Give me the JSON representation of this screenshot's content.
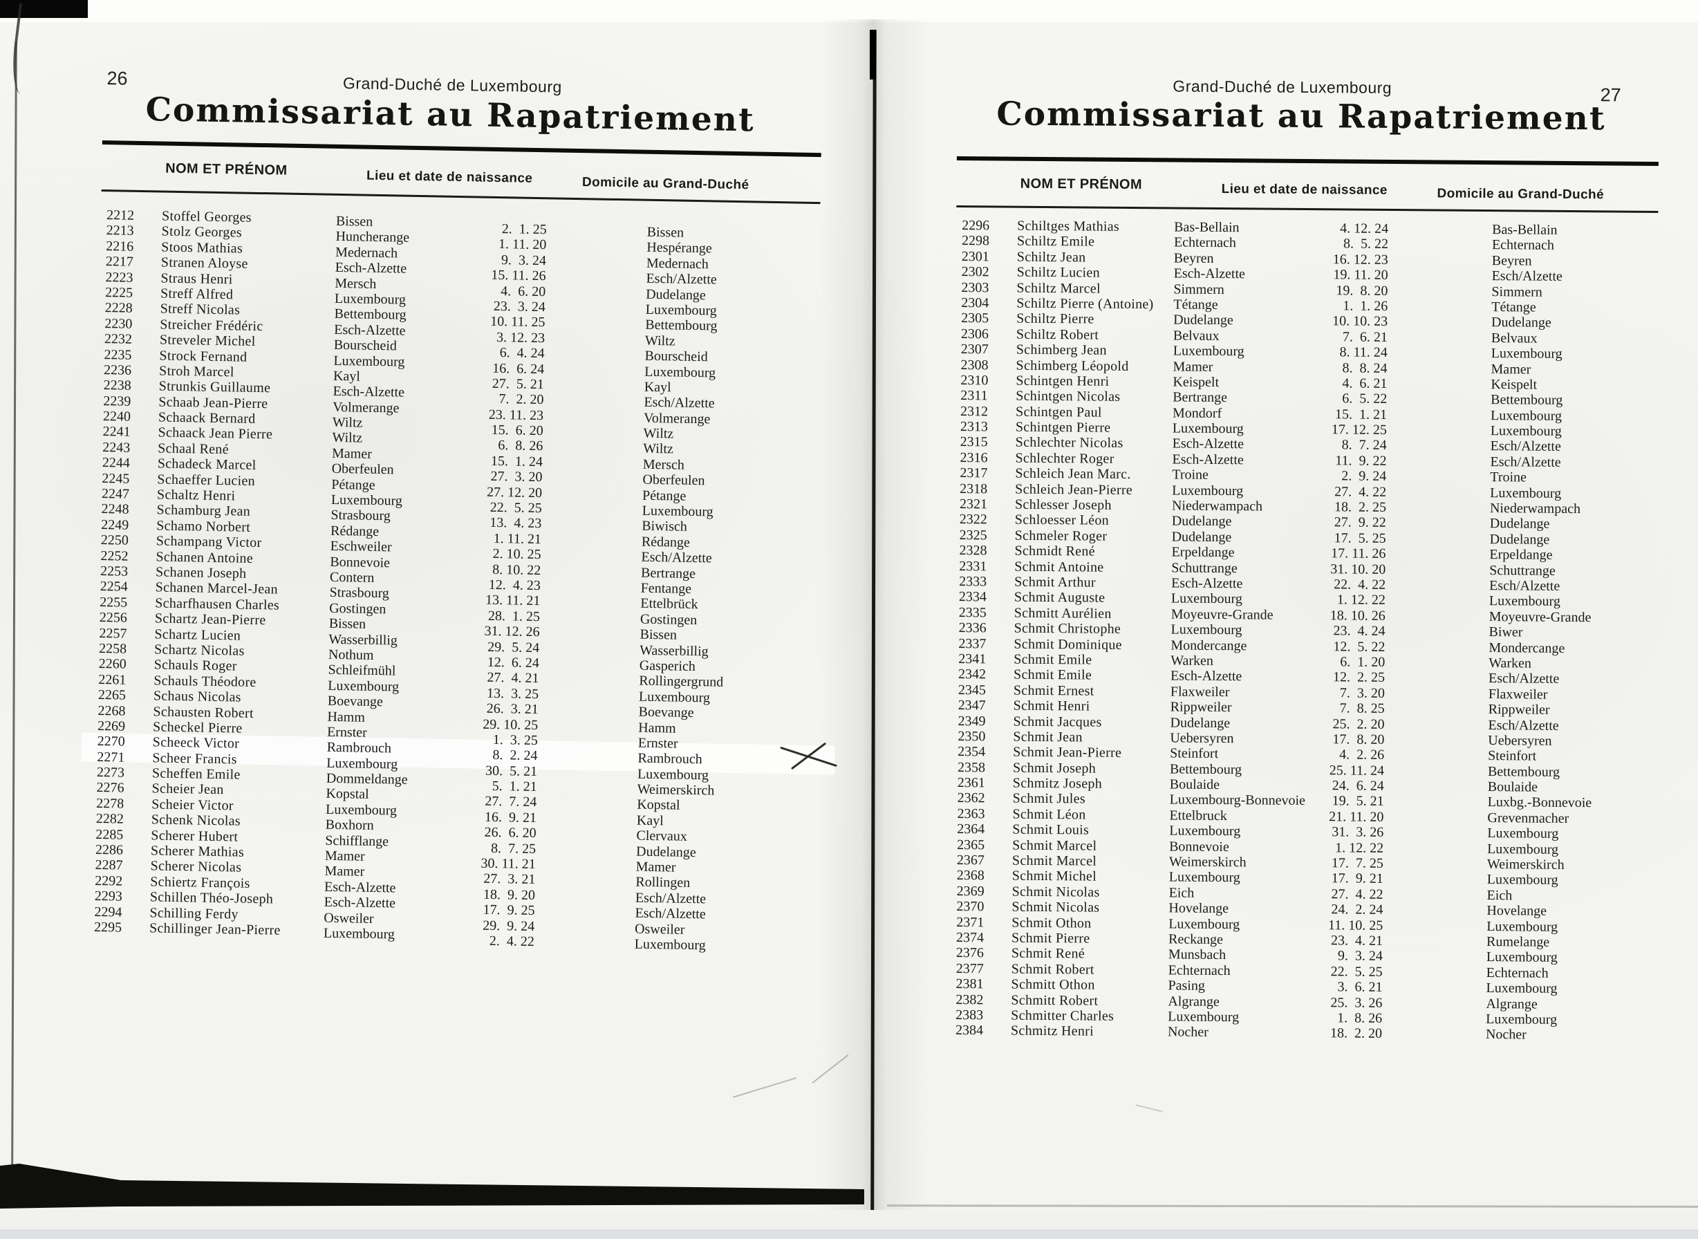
{
  "colors": {
    "paper": "#f5f5f2",
    "ink": "#1d1c1a",
    "title_ink": "#161511"
  },
  "columns": {
    "name": "NOM ET PRÉNOM",
    "birth": "Lieu et date de naissance",
    "domicile": "Domicile au Grand-Duché"
  },
  "page_left": {
    "page_number": "26",
    "country": "Grand-Duché de Luxembourg",
    "title": "Commissariat au Rapatriement",
    "rows": [
      {
        "num": "2212",
        "name": "Stoffel Georges",
        "birthplace": "Bissen",
        "birthdate": " 2.  1. 25",
        "domicile": "Bissen"
      },
      {
        "num": "2213",
        "name": "Stolz Georges",
        "birthplace": "Huncherange",
        "birthdate": " 1. 11. 20",
        "domicile": "Hespérange"
      },
      {
        "num": "2216",
        "name": "Stoos Mathias",
        "birthplace": "Medernach",
        "birthdate": " 9.  3. 24",
        "domicile": "Medernach"
      },
      {
        "num": "2217",
        "name": "Stranen Aloyse",
        "birthplace": "Esch-Alzette",
        "birthdate": "15. 11. 26",
        "domicile": "Esch/Alzette"
      },
      {
        "num": "2223",
        "name": "Straus Henri",
        "birthplace": "Mersch",
        "birthdate": " 4.  6. 20",
        "domicile": "Dudelange"
      },
      {
        "num": "2225",
        "name": "Streff Alfred",
        "birthplace": "Luxembourg",
        "birthdate": "23.  3. 24",
        "domicile": "Luxembourg"
      },
      {
        "num": "2228",
        "name": "Streff Nicolas",
        "birthplace": "Bettembourg",
        "birthdate": "10. 11. 25",
        "domicile": "Bettembourg"
      },
      {
        "num": "2230",
        "name": "Streicher Frédéric",
        "birthplace": "Esch-Alzette",
        "birthdate": " 3. 12. 23",
        "domicile": "Wiltz"
      },
      {
        "num": "2232",
        "name": "Streveler Michel",
        "birthplace": "Bourscheid",
        "birthdate": " 6.  4. 24",
        "domicile": "Bourscheid"
      },
      {
        "num": "2235",
        "name": "Strock Fernand",
        "birthplace": "Luxembourg",
        "birthdate": "16.  6. 24",
        "domicile": "Luxembourg"
      },
      {
        "num": "2236",
        "name": "Stroh Marcel",
        "birthplace": "Kayl",
        "birthdate": "27.  5. 21",
        "domicile": "Kayl"
      },
      {
        "num": "2238",
        "name": "Strunkis Guillaume",
        "birthplace": "Esch-Alzette",
        "birthdate": " 7.  2. 20",
        "domicile": "Esch/Alzette"
      },
      {
        "num": "2239",
        "name": "Schaab Jean-Pierre",
        "birthplace": "Volmerange",
        "birthdate": "23. 11. 23",
        "domicile": "Volmerange"
      },
      {
        "num": "2240",
        "name": "Schaack Bernard",
        "birthplace": "Wiltz",
        "birthdate": "15.  6. 20",
        "domicile": "Wiltz"
      },
      {
        "num": "2241",
        "name": "Schaack Jean Pierre",
        "birthplace": "Wiltz",
        "birthdate": " 6.  8. 26",
        "domicile": "Wiltz"
      },
      {
        "num": "2243",
        "name": "Schaal René",
        "birthplace": "Mamer",
        "birthdate": "15.  1. 24",
        "domicile": "Mersch"
      },
      {
        "num": "2244",
        "name": "Schadeck Marcel",
        "birthplace": "Oberfeulen",
        "birthdate": "27.  3. 20",
        "domicile": "Oberfeulen"
      },
      {
        "num": "2245",
        "name": "Schaeffer Lucien",
        "birthplace": "Pétange",
        "birthdate": "27. 12. 20",
        "domicile": "Pétange"
      },
      {
        "num": "2247",
        "name": "Schaltz Henri",
        "birthplace": "Luxembourg",
        "birthdate": "22.  5. 25",
        "domicile": "Luxembourg"
      },
      {
        "num": "2248",
        "name": "Schamburg Jean",
        "birthplace": "Strasbourg",
        "birthdate": "13.  4. 23",
        "domicile": "Biwisch"
      },
      {
        "num": "2249",
        "name": "Schamo Norbert",
        "birthplace": "Rédange",
        "birthdate": " 1. 11. 21",
        "domicile": "Rédange"
      },
      {
        "num": "2250",
        "name": "Schampang Victor",
        "birthplace": "Eschweiler",
        "birthdate": " 2. 10. 25",
        "domicile": "Esch/Alzette"
      },
      {
        "num": "2252",
        "name": "Schanen Antoine",
        "birthplace": "Bonnevoie",
        "birthdate": " 8. 10. 22",
        "domicile": "Bertrange"
      },
      {
        "num": "2253",
        "name": "Schanen Joseph",
        "birthplace": "Contern",
        "birthdate": "12.  4. 23",
        "domicile": "Fentange"
      },
      {
        "num": "2254",
        "name": "Schanen Marcel-Jean",
        "birthplace": "Strasbourg",
        "birthdate": "13. 11. 21",
        "domicile": "Ettelbrück"
      },
      {
        "num": "2255",
        "name": "Scharfhausen Charles",
        "birthplace": "Gostingen",
        "birthdate": "28.  1. 25",
        "domicile": "Gostingen"
      },
      {
        "num": "2256",
        "name": "Schartz Jean-Pierre",
        "birthplace": "Bissen",
        "birthdate": "31. 12. 26",
        "domicile": "Bissen"
      },
      {
        "num": "2257",
        "name": "Schartz Lucien",
        "birthplace": "Wasserbillig",
        "birthdate": "29.  5. 24",
        "domicile": "Wasserbillig"
      },
      {
        "num": "2258",
        "name": "Schartz Nicolas",
        "birthplace": "Nothum",
        "birthdate": "12.  6. 24",
        "domicile": "Gasperich"
      },
      {
        "num": "2260",
        "name": "Schauls Roger",
        "birthplace": "Schleifmühl",
        "birthdate": "27.  4. 21",
        "domicile": "Rollingergrund"
      },
      {
        "num": "2261",
        "name": "Schauls Théodore",
        "birthplace": "Luxembourg",
        "birthdate": "13.  3. 25",
        "domicile": "Luxembourg"
      },
      {
        "num": "2265",
        "name": "Schaus Nicolas",
        "birthplace": "Boevange",
        "birthdate": "26.  3. 21",
        "domicile": "Boevange"
      },
      {
        "num": "2268",
        "name": "Schausten Robert",
        "birthplace": "Hamm",
        "birthdate": "29. 10. 25",
        "domicile": "Hamm"
      },
      {
        "num": "2269",
        "name": "Scheckel Pierre",
        "birthplace": "Ernster",
        "birthdate": " 1.  3. 25",
        "domicile": "Ernster"
      },
      {
        "num": "2270",
        "name": "Scheeck Victor",
        "birthplace": "Rambrouch",
        "birthdate": " 8.  2. 24",
        "domicile": "Rambrouch",
        "highlight": true
      },
      {
        "num": "2271",
        "name": "Scheer Francis",
        "birthplace": "Luxembourg",
        "birthdate": "30.  5. 21",
        "domicile": "Luxembourg"
      },
      {
        "num": "2273",
        "name": "Scheffen Emile",
        "birthplace": "Dommeldange",
        "birthdate": " 5.  1. 21",
        "domicile": "Weimerskirch"
      },
      {
        "num": "2276",
        "name": "Scheier Jean",
        "birthplace": "Kopstal",
        "birthdate": "27.  7. 24",
        "domicile": "Kopstal"
      },
      {
        "num": "2278",
        "name": "Scheier Victor",
        "birthplace": "Luxembourg",
        "birthdate": "16.  9. 21",
        "domicile": "Kayl"
      },
      {
        "num": "2282",
        "name": "Schenk Nicolas",
        "birthplace": "Boxhorn",
        "birthdate": "26.  6. 20",
        "domicile": "Clervaux"
      },
      {
        "num": "2285",
        "name": "Scherer Hubert",
        "birthplace": "Schifflange",
        "birthdate": " 8.  7. 25",
        "domicile": "Dudelange"
      },
      {
        "num": "2286",
        "name": "Scherer Mathias",
        "birthplace": "Mamer",
        "birthdate": "30. 11. 21",
        "domicile": "Mamer"
      },
      {
        "num": "2287",
        "name": "Scherer Nicolas",
        "birthplace": "Mamer",
        "birthdate": "27.  3. 21",
        "domicile": "Rollingen"
      },
      {
        "num": "2292",
        "name": "Schiertz François",
        "birthplace": "Esch-Alzette",
        "birthdate": "18.  9. 20",
        "domicile": "Esch/Alzette"
      },
      {
        "num": "2293",
        "name": "Schillen Théo-Joseph",
        "birthplace": "Esch-Alzette",
        "birthdate": "17.  9. 25",
        "domicile": "Esch/Alzette"
      },
      {
        "num": "2294",
        "name": "Schilling Ferdy",
        "birthplace": "Osweiler",
        "birthdate": "29.  9. 24",
        "domicile": "Osweiler"
      },
      {
        "num": "2295",
        "name": "Schillinger Jean-Pierre",
        "birthplace": "Luxembourg",
        "birthdate": " 2.  4. 22",
        "domicile": "Luxembourg"
      }
    ]
  },
  "page_right": {
    "page_number": "27",
    "country": "Grand-Duché de Luxembourg",
    "title": "Commissariat au Rapatriement",
    "rows": [
      {
        "num": "2296",
        "name": "Schiltges Mathias",
        "birthplace": "Bas-Bellain",
        "birthdate": " 4. 12. 24",
        "domicile": "Bas-Bellain"
      },
      {
        "num": "2298",
        "name": "Schiltz Emile",
        "birthplace": "Echternach",
        "birthdate": " 8.  5. 22",
        "domicile": "Echternach"
      },
      {
        "num": "2301",
        "name": "Schiltz Jean",
        "birthplace": "Beyren",
        "birthdate": "16. 12. 23",
        "domicile": "Beyren"
      },
      {
        "num": "2302",
        "name": "Schiltz Lucien",
        "birthplace": "Esch-Alzette",
        "birthdate": "19. 11. 20",
        "domicile": "Esch/Alzette"
      },
      {
        "num": "2303",
        "name": "Schiltz Marcel",
        "birthplace": "Simmern",
        "birthdate": "19.  8. 20",
        "domicile": "Simmern"
      },
      {
        "num": "2304",
        "name": "Schiltz Pierre (Antoine)",
        "birthplace": "Tétange",
        "birthdate": " 1.  1. 26",
        "domicile": "Tétange"
      },
      {
        "num": "2305",
        "name": "Schiltz Pierre",
        "birthplace": "Dudelange",
        "birthdate": "10. 10. 23",
        "domicile": "Dudelange"
      },
      {
        "num": "2306",
        "name": "Schiltz Robert",
        "birthplace": "Belvaux",
        "birthdate": " 7.  6. 21",
        "domicile": "Belvaux"
      },
      {
        "num": "2307",
        "name": "Schimberg Jean",
        "birthplace": "Luxembourg",
        "birthdate": " 8. 11. 24",
        "domicile": "Luxembourg"
      },
      {
        "num": "2308",
        "name": "Schimberg Léopold",
        "birthplace": "Mamer",
        "birthdate": " 8.  8. 24",
        "domicile": "Mamer"
      },
      {
        "num": "2310",
        "name": "Schintgen Henri",
        "birthplace": "Keispelt",
        "birthdate": " 4.  6. 21",
        "domicile": "Keispelt"
      },
      {
        "num": "2311",
        "name": "Schintgen Nicolas",
        "birthplace": "Bertrange",
        "birthdate": " 6.  5. 22",
        "domicile": "Bettembourg"
      },
      {
        "num": "2312",
        "name": "Schintgen Paul",
        "birthplace": "Mondorf",
        "birthdate": "15.  1. 21",
        "domicile": "Luxembourg"
      },
      {
        "num": "2313",
        "name": "Schintgen Pierre",
        "birthplace": "Luxembourg",
        "birthdate": "17. 12. 25",
        "domicile": "Luxembourg"
      },
      {
        "num": "2315",
        "name": "Schlechter Nicolas",
        "birthplace": "Esch-Alzette",
        "birthdate": " 8.  7. 24",
        "domicile": "Esch/Alzette"
      },
      {
        "num": "2316",
        "name": "Schlechter Roger",
        "birthplace": "Esch-Alzette",
        "birthdate": "11.  9. 22",
        "domicile": "Esch/Alzette"
      },
      {
        "num": "2317",
        "name": "Schleich Jean Marc.",
        "birthplace": "Troine",
        "birthdate": " 2.  9. 24",
        "domicile": "Troine"
      },
      {
        "num": "2318",
        "name": "Schleich Jean-Pierre",
        "birthplace": "Luxembourg",
        "birthdate": "27.  4. 22",
        "domicile": "Luxembourg"
      },
      {
        "num": "2321",
        "name": "Schlesser Joseph",
        "birthplace": "Niederwampach",
        "birthdate": "18.  2. 25",
        "domicile": "Niederwampach"
      },
      {
        "num": "2322",
        "name": "Schloesser Léon",
        "birthplace": "Dudelange",
        "birthdate": "27.  9. 22",
        "domicile": "Dudelange"
      },
      {
        "num": "2325",
        "name": "Schmeler Roger",
        "birthplace": "Dudelange",
        "birthdate": "17.  5. 25",
        "domicile": "Dudelange"
      },
      {
        "num": "2328",
        "name": "Schmidt René",
        "birthplace": "Erpeldange",
        "birthdate": "17. 11. 26",
        "domicile": "Erpeldange"
      },
      {
        "num": "2331",
        "name": "Schmit Antoine",
        "birthplace": "Schuttrange",
        "birthdate": "31. 10. 20",
        "domicile": "Schuttrange"
      },
      {
        "num": "2333",
        "name": "Schmit Arthur",
        "birthplace": "Esch-Alzette",
        "birthdate": "22.  4. 22",
        "domicile": "Esch/Alzette"
      },
      {
        "num": "2334",
        "name": "Schmit Auguste",
        "birthplace": "Luxembourg",
        "birthdate": " 1. 12. 22",
        "domicile": "Luxembourg"
      },
      {
        "num": "2335",
        "name": "Schmitt Aurélien",
        "birthplace": "Moyeuvre-Grande",
        "birthdate": "18. 10. 26",
        "domicile": "Moyeuvre-Grande"
      },
      {
        "num": "2336",
        "name": "Schmit Christophe",
        "birthplace": "Luxembourg",
        "birthdate": "23.  4. 24",
        "domicile": "Biwer"
      },
      {
        "num": "2337",
        "name": "Schmit Dominique",
        "birthplace": "Mondercange",
        "birthdate": "12.  5. 22",
        "domicile": "Mondercange"
      },
      {
        "num": "2341",
        "name": "Schmit Emile",
        "birthplace": "Warken",
        "birthdate": " 6.  1. 20",
        "domicile": "Warken"
      },
      {
        "num": "2342",
        "name": "Schmit Emile",
        "birthplace": "Esch-Alzette",
        "birthdate": "12.  2. 25",
        "domicile": "Esch/Alzette"
      },
      {
        "num": "2345",
        "name": "Schmit Ernest",
        "birthplace": "Flaxweiler",
        "birthdate": " 7.  3. 20",
        "domicile": "Flaxweiler"
      },
      {
        "num": "2347",
        "name": "Schmit Henri",
        "birthplace": "Rippweiler",
        "birthdate": " 7.  8. 25",
        "domicile": "Rippweiler"
      },
      {
        "num": "2349",
        "name": "Schmit Jacques",
        "birthplace": "Dudelange",
        "birthdate": "25.  2. 20",
        "domicile": "Esch/Alzette"
      },
      {
        "num": "2350",
        "name": "Schmit Jean",
        "birthplace": "Uebersyren",
        "birthdate": "17.  8. 20",
        "domicile": "Uebersyren"
      },
      {
        "num": "2354",
        "name": "Schmit Jean-Pierre",
        "birthplace": "Steinfort",
        "birthdate": " 4.  2. 26",
        "domicile": "Steinfort"
      },
      {
        "num": "2358",
        "name": "Schmit Joseph",
        "birthplace": "Bettembourg",
        "birthdate": "25. 11. 24",
        "domicile": "Bettembourg"
      },
      {
        "num": "2361",
        "name": "Schmitz Joseph",
        "birthplace": "Boulaide",
        "birthdate": "24.  6. 24",
        "domicile": "Boulaide"
      },
      {
        "num": "2362",
        "name": "Schmit Jules",
        "birthplace": "Luxembourg-Bonnevoie",
        "birthdate": "19.  5. 21",
        "domicile": "Luxbg.-Bonnevoie"
      },
      {
        "num": "2363",
        "name": "Schmit Léon",
        "birthplace": "Ettelbruck",
        "birthdate": "21. 11. 20",
        "domicile": "Grevenmacher"
      },
      {
        "num": "2364",
        "name": "Schmit Louis",
        "birthplace": "Luxembourg",
        "birthdate": "31.  3. 26",
        "domicile": "Luxembourg"
      },
      {
        "num": "2365",
        "name": "Schmit Marcel",
        "birthplace": "Bonnevoie",
        "birthdate": " 1. 12. 22",
        "domicile": "Luxembourg"
      },
      {
        "num": "2367",
        "name": "Schmit Marcel",
        "birthplace": "Weimerskirch",
        "birthdate": "17.  7. 25",
        "domicile": "Weimerskirch"
      },
      {
        "num": "2368",
        "name": "Schmit Michel",
        "birthplace": "Luxembourg",
        "birthdate": "17.  9. 21",
        "domicile": "Luxembourg"
      },
      {
        "num": "2369",
        "name": "Schmit Nicolas",
        "birthplace": "Eich",
        "birthdate": "27.  4. 22",
        "domicile": "Eich"
      },
      {
        "num": "2370",
        "name": "Schmit Nicolas",
        "birthplace": "Hovelange",
        "birthdate": "24.  2. 24",
        "domicile": "Hovelange"
      },
      {
        "num": "2371",
        "name": "Schmit Othon",
        "birthplace": "Luxembourg",
        "birthdate": "11. 10. 25",
        "domicile": "Luxembourg"
      },
      {
        "num": "2374",
        "name": "Schmit Pierre",
        "birthplace": "Reckange",
        "birthdate": "23.  4. 21",
        "domicile": "Rumelange"
      },
      {
        "num": "2376",
        "name": "Schmit René",
        "birthplace": "Munsbach",
        "birthdate": " 9.  3. 24",
        "domicile": "Luxembourg"
      },
      {
        "num": "2377",
        "name": "Schmit Robert",
        "birthplace": "Echternach",
        "birthdate": "22.  5. 25",
        "domicile": "Echternach"
      },
      {
        "num": "2381",
        "name": "Schmitt Othon",
        "birthplace": "Pasing",
        "birthdate": " 3.  6. 21",
        "domicile": "Luxembourg"
      },
      {
        "num": "2382",
        "name": "Schmitt Robert",
        "birthplace": "Algrange",
        "birthdate": "25.  3. 26",
        "domicile": "Algrange"
      },
      {
        "num": "2383",
        "name": "Schmitter Charles",
        "birthplace": "Luxembourg",
        "birthdate": " 1.  8. 26",
        "domicile": "Luxembourg"
      },
      {
        "num": "2384",
        "name": "Schmitz Henri",
        "birthplace": "Nocher",
        "birthdate": "18.  2. 20",
        "domicile": "Nocher"
      }
    ]
  },
  "annotations": {
    "left_page_handwritten_x_mark": true,
    "left_page_highlight_row": "2270"
  }
}
